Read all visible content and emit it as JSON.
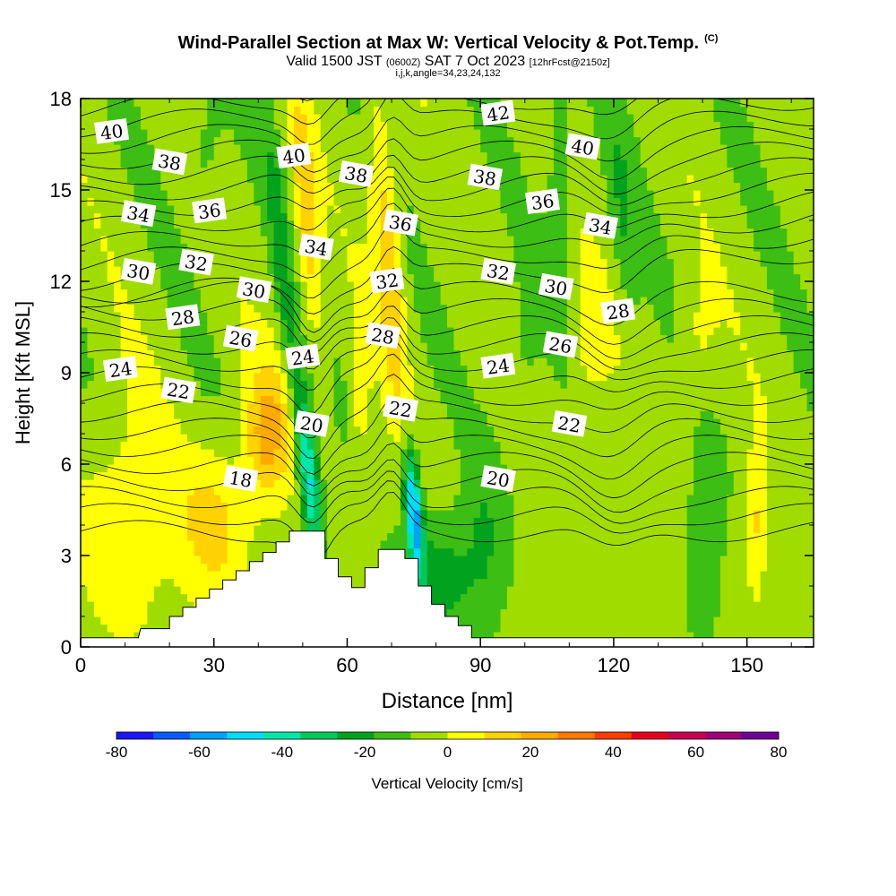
{
  "title": {
    "main": "Wind-Parallel Section at Max W: Vertical Velocity & Pot.Temp.",
    "copyright": "(C)",
    "valid_prefix": "Valid 1500 JST",
    "valid_utc": "(0600Z)",
    "valid_date": "SAT 7 Oct 2023",
    "forecast": "[12hrFcst@2150z]",
    "params": "i,j,k,angle=34,23,24,132"
  },
  "chart_data": {
    "type": "heatmap",
    "xlabel": "Distance [nm]",
    "ylabel": "Height [Kft MSL]",
    "xlim": [
      0,
      165
    ],
    "ylim": [
      0,
      18
    ],
    "x_ticks": [
      "0",
      "30",
      "60",
      "90",
      "120",
      "150"
    ],
    "y_ticks": [
      "0",
      "3",
      "6",
      "9",
      "12",
      "15",
      "18"
    ],
    "colorbar": {
      "label": "Vertical Velocity [cm/s]",
      "ticks": [
        "-80",
        "-60",
        "-40",
        "-20",
        "0",
        "20",
        "40",
        "60",
        "80"
      ],
      "range": [
        -80,
        80
      ],
      "colors": [
        "#1e14ff",
        "#0a5aff",
        "#00a0ff",
        "#00dcff",
        "#00e6aa",
        "#00c85a",
        "#00a21e",
        "#3cbe14",
        "#a0dc00",
        "#ffff00",
        "#ffd200",
        "#ffaa00",
        "#ff7800",
        "#ff3c00",
        "#e6001e",
        "#c80050",
        "#a00078",
        "#6e0096"
      ]
    },
    "theta_labels": [
      {
        "value": "40",
        "x": 7,
        "y": 16.9
      },
      {
        "value": "38",
        "x": 20,
        "y": 15.9
      },
      {
        "value": "34",
        "x": 13,
        "y": 14.2
      },
      {
        "value": "36",
        "x": 29,
        "y": 14.3
      },
      {
        "value": "30",
        "x": 13,
        "y": 12.3
      },
      {
        "value": "32",
        "x": 26,
        "y": 12.6
      },
      {
        "value": "28",
        "x": 23,
        "y": 10.8
      },
      {
        "value": "30",
        "x": 39,
        "y": 11.7
      },
      {
        "value": "26",
        "x": 36,
        "y": 10.1
      },
      {
        "value": "24",
        "x": 9,
        "y": 9.1
      },
      {
        "value": "22",
        "x": 22,
        "y": 8.4
      },
      {
        "value": "18",
        "x": 36,
        "y": 5.5
      },
      {
        "value": "40",
        "x": 48,
        "y": 16.1
      },
      {
        "value": "38",
        "x": 62,
        "y": 15.5
      },
      {
        "value": "34",
        "x": 53,
        "y": 13.1
      },
      {
        "value": "24",
        "x": 50,
        "y": 9.5
      },
      {
        "value": "20",
        "x": 52,
        "y": 7.3
      },
      {
        "value": "36",
        "x": 72,
        "y": 13.9
      },
      {
        "value": "32",
        "x": 69,
        "y": 12.0
      },
      {
        "value": "28",
        "x": 68,
        "y": 10.2
      },
      {
        "value": "22",
        "x": 72,
        "y": 7.8
      },
      {
        "value": "42",
        "x": 94,
        "y": 17.5
      },
      {
        "value": "38",
        "x": 91,
        "y": 15.4
      },
      {
        "value": "32",
        "x": 94,
        "y": 12.3
      },
      {
        "value": "24",
        "x": 94,
        "y": 9.2
      },
      {
        "value": "20",
        "x": 94,
        "y": 5.5
      },
      {
        "value": "40",
        "x": 113,
        "y": 16.4
      },
      {
        "value": "36",
        "x": 104,
        "y": 14.6
      },
      {
        "value": "34",
        "x": 117,
        "y": 13.8
      },
      {
        "value": "30",
        "x": 107,
        "y": 11.8
      },
      {
        "value": "28",
        "x": 121,
        "y": 11.0
      },
      {
        "value": "26",
        "x": 108,
        "y": 9.9
      },
      {
        "value": "22",
        "x": 110,
        "y": 7.3
      }
    ],
    "terrain": [
      {
        "x": 0,
        "z": 0.3
      },
      {
        "x": 13,
        "z": 0.3
      },
      {
        "x": 13.5,
        "z": 0.6
      },
      {
        "x": 20,
        "z": 0.6
      },
      {
        "x": 20,
        "z": 1.0
      },
      {
        "x": 23,
        "z": 1.0
      },
      {
        "x": 23,
        "z": 1.3
      },
      {
        "x": 26,
        "z": 1.3
      },
      {
        "x": 26,
        "z": 1.6
      },
      {
        "x": 29,
        "z": 1.6
      },
      {
        "x": 29,
        "z": 1.9
      },
      {
        "x": 32,
        "z": 1.9
      },
      {
        "x": 32,
        "z": 2.2
      },
      {
        "x": 35,
        "z": 2.2
      },
      {
        "x": 35,
        "z": 2.5
      },
      {
        "x": 38,
        "z": 2.5
      },
      {
        "x": 38,
        "z": 2.8
      },
      {
        "x": 41,
        "z": 2.8
      },
      {
        "x": 41,
        "z": 3.1
      },
      {
        "x": 44,
        "z": 3.1
      },
      {
        "x": 44,
        "z": 3.45
      },
      {
        "x": 47,
        "z": 3.45
      },
      {
        "x": 47,
        "z": 3.8
      },
      {
        "x": 55,
        "z": 3.8
      },
      {
        "x": 55,
        "z": 2.9
      },
      {
        "x": 58,
        "z": 2.9
      },
      {
        "x": 58,
        "z": 2.3
      },
      {
        "x": 61,
        "z": 2.3
      },
      {
        "x": 61,
        "z": 1.95
      },
      {
        "x": 64,
        "z": 1.95
      },
      {
        "x": 64,
        "z": 2.6
      },
      {
        "x": 67,
        "z": 2.6
      },
      {
        "x": 67,
        "z": 3.2
      },
      {
        "x": 73,
        "z": 3.2
      },
      {
        "x": 73,
        "z": 2.9
      },
      {
        "x": 76,
        "z": 2.9
      },
      {
        "x": 76,
        "z": 2.0
      },
      {
        "x": 79,
        "z": 2.0
      },
      {
        "x": 79,
        "z": 1.4
      },
      {
        "x": 82,
        "z": 1.4
      },
      {
        "x": 82,
        "z": 1.0
      },
      {
        "x": 85,
        "z": 1.0
      },
      {
        "x": 85,
        "z": 0.7
      },
      {
        "x": 88,
        "z": 0.7
      },
      {
        "x": 88,
        "z": 0.3
      },
      {
        "x": 165,
        "z": 0.3
      }
    ]
  }
}
